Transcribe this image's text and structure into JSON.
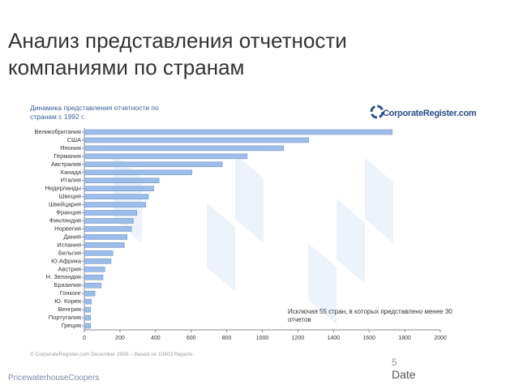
{
  "title": "Анализ представления отчетности компаниями по странам",
  "logo": "CorporateRegister.com",
  "footer": {
    "source": "© CorporateRegister.com December 2005 – Based on 10403 Reports",
    "company": "PricewaterhouseCoopers",
    "page": "5",
    "date": "Date"
  },
  "chart_data": {
    "type": "bar",
    "orientation": "horizontal",
    "title": "Динамика представления отчетности по странам с 1992 г.",
    "annotation": "Исключая 55 стран, в которых представлено менее 30 отчетов",
    "categories": [
      "Великобритания",
      "США",
      "Япония",
      "Германия",
      "Австралия",
      "Канада",
      "Италия",
      "Нидерланды",
      "Швеция",
      "Швейцария",
      "Франция",
      "Финляндия",
      "Норвегия",
      "Дания",
      "Испания",
      "Бельгия",
      "Ю.Африка",
      "Австрия",
      "Н. Зеландия",
      "Бразилия",
      "Гонконг",
      "Ю. Корея",
      "Венгрия",
      "Португалия",
      "Греция"
    ],
    "values": [
      1730,
      1260,
      1120,
      915,
      775,
      605,
      420,
      390,
      360,
      345,
      295,
      275,
      265,
      240,
      225,
      160,
      150,
      115,
      105,
      95,
      60,
      40,
      35,
      35,
      35
    ],
    "color": "#9dbde8",
    "xlim": [
      0,
      2000
    ],
    "xticks": [
      0,
      200,
      400,
      600,
      800,
      1000,
      1200,
      1400,
      1600,
      1800,
      2000
    ],
    "grid": false
  }
}
